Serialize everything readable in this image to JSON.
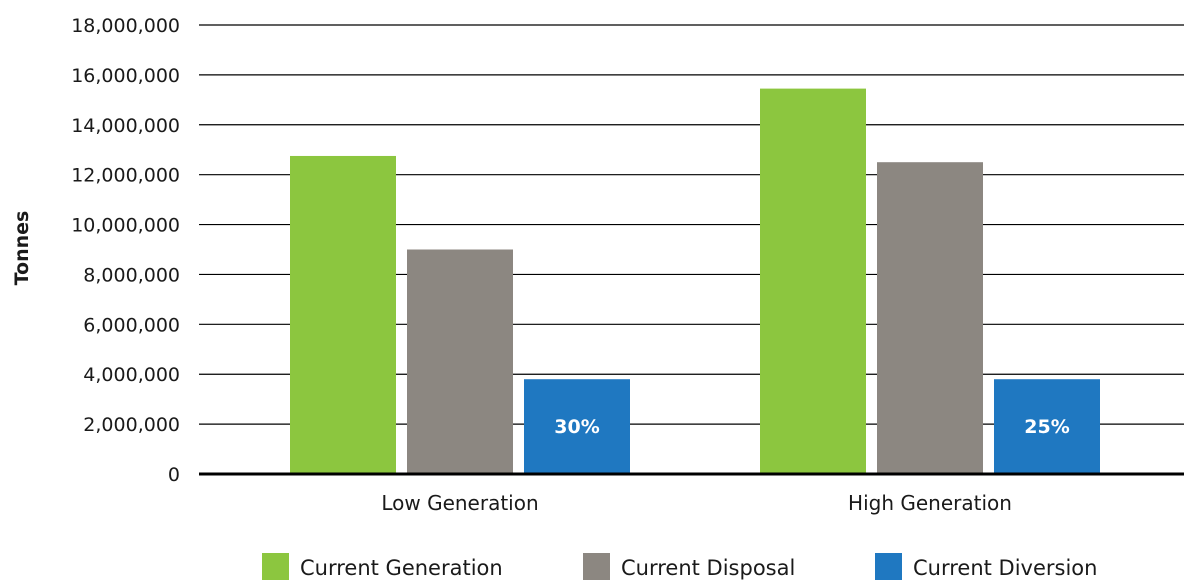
{
  "chart_data": {
    "type": "bar",
    "title": "",
    "xlabel": "",
    "ylabel": "Tonnes",
    "ylim": [
      0,
      18000000
    ],
    "yticks": [
      0,
      2000000,
      4000000,
      6000000,
      8000000,
      10000000,
      12000000,
      14000000,
      16000000,
      18000000
    ],
    "ytick_labels": [
      "0",
      "2,000,000",
      "4,000,000",
      "6,000,000",
      "8,000,000",
      "10,000,000",
      "12,000,000",
      "14,000,000",
      "16,000,000",
      "18,000,000"
    ],
    "categories": [
      "Low Generation",
      "High Generation"
    ],
    "series": [
      {
        "name": "Current Generation",
        "color": "#8cc63f",
        "values": [
          12750000,
          15450000
        ]
      },
      {
        "name": "Current Disposal",
        "color": "#8c8781",
        "values": [
          9000000,
          12500000
        ]
      },
      {
        "name": "Current Diversion",
        "color": "#1f78c1",
        "values": [
          3800000,
          3800000
        ],
        "data_labels": [
          "30%",
          "25%"
        ]
      }
    ],
    "grid": true,
    "legend_position": "bottom"
  }
}
